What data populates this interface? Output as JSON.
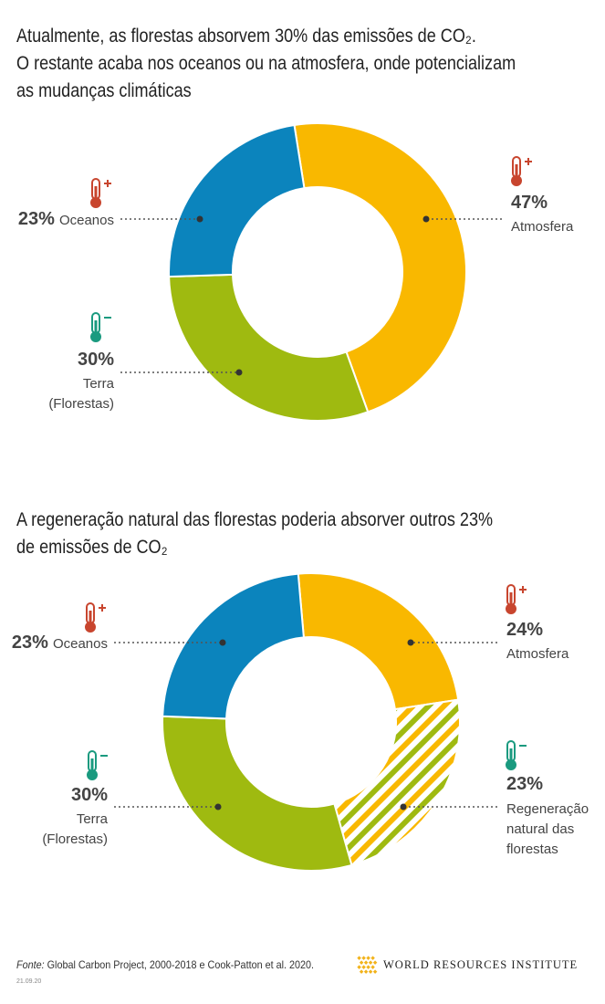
{
  "chart_data": [
    {
      "type": "donut",
      "title": [
        "Atualmente, as florestas absorvem 30% das emissões de CO₂.",
        "O restante acaba nos oceanos ou na atmosfera, onde potencializam",
        "as mudanças climáticas"
      ],
      "categories": [
        "Atmosfera",
        "Terra (Florestas)",
        "Oceanos"
      ],
      "values": [
        47,
        30,
        23
      ],
      "value_labels": [
        "47%",
        "30%",
        "23%"
      ],
      "colors": [
        "#f9b800",
        "#9fba10",
        "#0b84bd"
      ]
    },
    {
      "type": "donut",
      "title": [
        "A regeneração natural das florestas poderia absorver outros 23%",
        "de emissões de CO₂"
      ],
      "categories": [
        "Atmosfera",
        "Regeneração natural das florestas",
        "Terra (Florestas)",
        "Oceanos"
      ],
      "values": [
        24,
        23,
        30,
        23
      ],
      "value_labels": [
        "24%",
        "23%",
        "30%",
        "23%"
      ],
      "colors": [
        "#f9b800",
        "#f9b800",
        "#9fba10",
        "#0b84bd"
      ],
      "hatched": [
        false,
        true,
        false,
        false
      ],
      "hatch_color": "#9fba10"
    }
  ],
  "footer": {
    "source_label": "Fonte:",
    "source": "Global Carbon Project, 2000-2018 e Cook-Patton et al. 2020.",
    "date": "21.09.20",
    "logo": "WORLD RESOURCES INSTITUTE"
  }
}
